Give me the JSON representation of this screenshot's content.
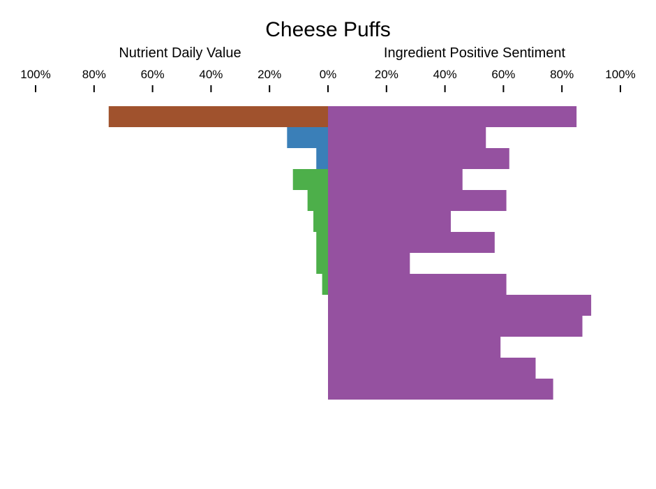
{
  "chart_data": {
    "type": "bar",
    "orientation": "horizontal-diverging",
    "title": "Cheese Puffs",
    "left_axis_label": "Nutrient Daily Value",
    "right_axis_label": "Ingredient Positive Sentiment",
    "tick_labels": [
      "100%",
      "80%",
      "60%",
      "40%",
      "20%",
      "0%",
      "20%",
      "40%",
      "60%",
      "80%",
      "100%"
    ],
    "xlim": [
      -100,
      100
    ],
    "grid": false,
    "rows": 14,
    "nutrient_daily_value": [
      75,
      14,
      4,
      12,
      7,
      5,
      4,
      4,
      2,
      0,
      0,
      0,
      0,
      0
    ],
    "nutrient_colors": [
      "#a0522d",
      "#3a7fb8",
      "#3a7fb8",
      "#4daf4a",
      "#4daf4a",
      "#4daf4a",
      "#4daf4a",
      "#4daf4a",
      "#4daf4a",
      "#4daf4a",
      "#4daf4a",
      "#4daf4a",
      "#4daf4a",
      "#4daf4a"
    ],
    "ingredient_positive_sentiment": [
      85,
      54,
      62,
      46,
      61,
      42,
      57,
      28,
      61,
      90,
      87,
      59,
      71,
      77
    ],
    "ingredient_color": "#9551a0"
  }
}
